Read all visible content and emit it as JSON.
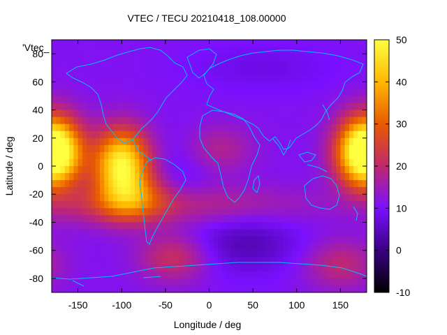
{
  "chart_data": {
    "type": "heatmap",
    "title": "VTEC / TECU 20210418_108.00000",
    "key_title": "'Vtec_",
    "xlabel": "Longitude / deg",
    "ylabel": "Latitude / deg",
    "xlim": [
      -180,
      180
    ],
    "ylim": [
      -90,
      90
    ],
    "xticks": [
      -150,
      -100,
      -50,
      0,
      50,
      100,
      150
    ],
    "yticks": [
      -80,
      -60,
      -40,
      -20,
      0,
      20,
      40,
      60,
      80
    ],
    "colorbar": {
      "range": [
        -10,
        50
      ],
      "ticks": [
        -10,
        0,
        10,
        20,
        30,
        40,
        50
      ]
    },
    "palette": [
      "#000000",
      "#3a0082",
      "#7a10ff",
      "#c0286e",
      "#e85a00",
      "#ffb800",
      "#ffff40"
    ],
    "coastline_color": "#00bfff",
    "grid": false,
    "field_description": "Global VTEC map: background ~10-12 TECU, equatorial maxima ~40 TECU near lon 170-180 and ~45-50 TECU near lon -100 (lat 0), elevated ~20-25 TECU belt along lat -20 to -30, minima ~0 TECU near lon 20-60 lat -50 to -60.",
    "peaks": [
      {
        "lon": -175,
        "lat": 10,
        "value": 40
      },
      {
        "lon": 175,
        "lat": 10,
        "value": 38
      },
      {
        "lon": -100,
        "lat": 2,
        "value": 48
      },
      {
        "lon": -90,
        "lat": -22,
        "value": 26
      },
      {
        "lon": 10,
        "lat": 12,
        "value": 18
      },
      {
        "lon": -40,
        "lat": -65,
        "value": 22
      },
      {
        "lon": 150,
        "lat": -70,
        "value": 20
      }
    ]
  }
}
